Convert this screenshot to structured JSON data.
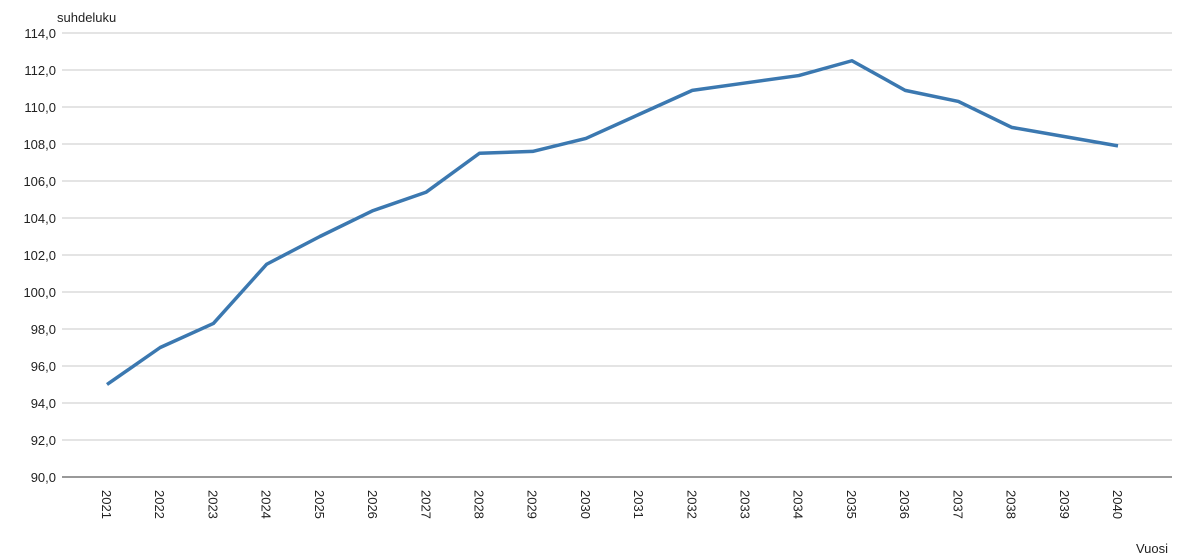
{
  "chart_data": {
    "type": "line",
    "y_axis_label": "suhdeluku",
    "x_axis_label": "Vuosi",
    "categories": [
      "2021",
      "2022",
      "2023",
      "2024",
      "2025",
      "2026",
      "2027",
      "2028",
      "2029",
      "2030",
      "2031",
      "2032",
      "2033",
      "2034",
      "2035",
      "2036",
      "2037",
      "2038",
      "2039",
      "2040"
    ],
    "series": [
      {
        "color": "#3b78b0",
        "values": [
          95.0,
          97.0,
          98.3,
          101.5,
          103.0,
          104.4,
          105.4,
          107.5,
          107.6,
          108.3,
          109.6,
          110.9,
          111.3,
          111.7,
          112.5,
          110.9,
          110.3,
          108.9,
          108.4,
          107.9
        ]
      }
    ],
    "ylim": [
      90,
      114
    ],
    "yticks": [
      {
        "value": 90,
        "label": "90,0"
      },
      {
        "value": 92,
        "label": "92,0"
      },
      {
        "value": 94,
        "label": "94,0"
      },
      {
        "value": 96,
        "label": "96,0"
      },
      {
        "value": 98,
        "label": "98,0"
      },
      {
        "value": 100,
        "label": "100,0"
      },
      {
        "value": 102,
        "label": "102,0"
      },
      {
        "value": 104,
        "label": "104,0"
      },
      {
        "value": 106,
        "label": "106,0"
      },
      {
        "value": 108,
        "label": "108,0"
      },
      {
        "value": 110,
        "label": "110,0"
      },
      {
        "value": 112,
        "label": "112,0"
      },
      {
        "value": 114,
        "label": "114,0"
      }
    ],
    "grid": true
  }
}
